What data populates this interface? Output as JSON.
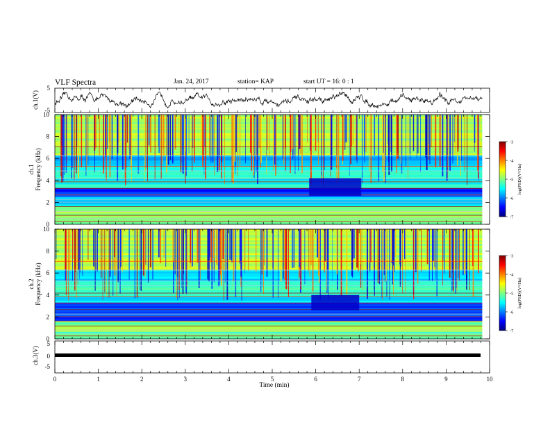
{
  "header": {
    "title": "VLF Spectra",
    "date": "Jan. 24, 2017",
    "station": "station= KAP",
    "start": "start  UT =   16: 0  : 1"
  },
  "chart_data": [
    {
      "type": "line",
      "panel": "ch1-waveform",
      "ylabel": "ch.1(V)",
      "ylim": [
        -5,
        5
      ],
      "yticks": [
        "5",
        "-5"
      ],
      "xlim": [
        0,
        10
      ],
      "x_end": 9.83,
      "series": [
        {
          "color": "#000000",
          "values": "noisy signal fluctuating roughly between -4 and +3 V"
        }
      ]
    },
    {
      "type": "heatmap",
      "panel": "ch1-spectrogram",
      "ylabel": "Frequency (kHz)",
      "channel_label": "ch.1",
      "xlim": [
        0,
        10
      ],
      "ylim": [
        0,
        10
      ],
      "yticks": [
        "0",
        "2",
        "4",
        "6",
        "8",
        "10"
      ],
      "features": {
        "quiet_patch": {
          "x": [
            5.85,
            7.05
          ],
          "y": [
            2.6,
            4.2
          ]
        },
        "dark_band_low": {
          "y": [
            2.5,
            3.4
          ]
        },
        "blue_band_mid": {
          "y": [
            5.3,
            6.3
          ]
        },
        "vertical_bursts": "dark vertical streaks across 6-10 kHz throughout"
      },
      "colorbar": {
        "label": "log(PSD)(V²/Hz)",
        "ticks": [
          "-3",
          "-4",
          "-5",
          "-6",
          "-7"
        ],
        "range": [
          -7,
          -3
        ]
      }
    },
    {
      "type": "heatmap",
      "panel": "ch2-spectrogram",
      "ylabel": "Frequency (kHz)",
      "channel_label": "ch.2",
      "xlim": [
        0,
        10
      ],
      "ylim": [
        0,
        10
      ],
      "yticks": [
        "0",
        "2",
        "4",
        "6",
        "8",
        "10"
      ],
      "features": {
        "quiet_patch": {
          "x": [
            5.9,
            7.0
          ],
          "y": [
            2.6,
            4.0
          ]
        },
        "dark_band_low": {
          "y": [
            1.6,
            3.2
          ]
        },
        "vertical_bursts": "dark vertical streaks across 6-10 kHz throughout"
      },
      "colorbar": {
        "label": "log(PSD)(V²/Hz)",
        "ticks": [
          "-3",
          "-4",
          "-5",
          "-6",
          "-7"
        ],
        "range": [
          -7,
          -3
        ]
      }
    },
    {
      "type": "line",
      "panel": "ch3-waveform",
      "ylabel": "ch.3(V)",
      "ylim": [
        -5,
        5
      ],
      "yticks": [
        "5",
        "0",
        "-5"
      ],
      "xlim": [
        0,
        10
      ],
      "x_end": 9.83,
      "series": [
        {
          "color": "#000000",
          "values": "flat line at approximately 0 V"
        }
      ]
    }
  ],
  "xaxis": {
    "label": "Time (min)",
    "ticks": [
      "0",
      "1",
      "2",
      "3",
      "4",
      "5",
      "6",
      "7",
      "8",
      "9",
      "10"
    ]
  },
  "colors": {
    "jet_low": "#00007f",
    "jet_mid": "#00ff80",
    "jet_high": "#7f0000"
  }
}
